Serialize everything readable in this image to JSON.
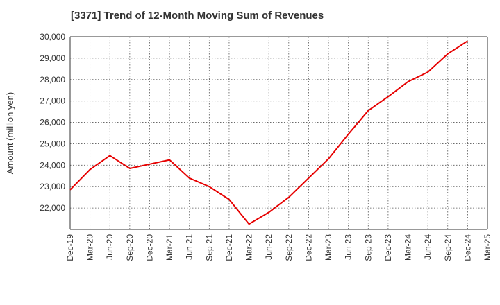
{
  "chart_data": {
    "type": "line",
    "title": "[3371]  Trend of 12-Month Moving Sum of Revenues",
    "ylabel": "Amount (million yen)",
    "xlabel": "",
    "ylim": [
      21000,
      30000
    ],
    "yticks": [
      22000,
      23000,
      24000,
      25000,
      26000,
      27000,
      28000,
      29000,
      30000
    ],
    "ytick_labels": [
      "22,000",
      "23,000",
      "24,000",
      "25,000",
      "26,000",
      "27,000",
      "28,000",
      "29,000",
      "30,000"
    ],
    "categories": [
      "Dec-19",
      "Mar-20",
      "Jun-20",
      "Sep-20",
      "Dec-20",
      "Mar-21",
      "Jun-21",
      "Sep-21",
      "Dec-21",
      "Mar-22",
      "Jun-22",
      "Sep-22",
      "Dec-22",
      "Mar-23",
      "Jun-23",
      "Sep-23",
      "Dec-23",
      "Mar-24",
      "Jun-24",
      "Sep-24",
      "Dec-24",
      "Mar-25"
    ],
    "grid": true,
    "series": [
      {
        "color": "#e60000",
        "values": [
          22850,
          23800,
          24450,
          23850,
          24050,
          24250,
          23400,
          23000,
          22400,
          21250,
          21800,
          22500,
          23400,
          24300,
          25450,
          26550,
          27200,
          27900,
          28350,
          29200,
          29800,
          null
        ]
      }
    ]
  }
}
